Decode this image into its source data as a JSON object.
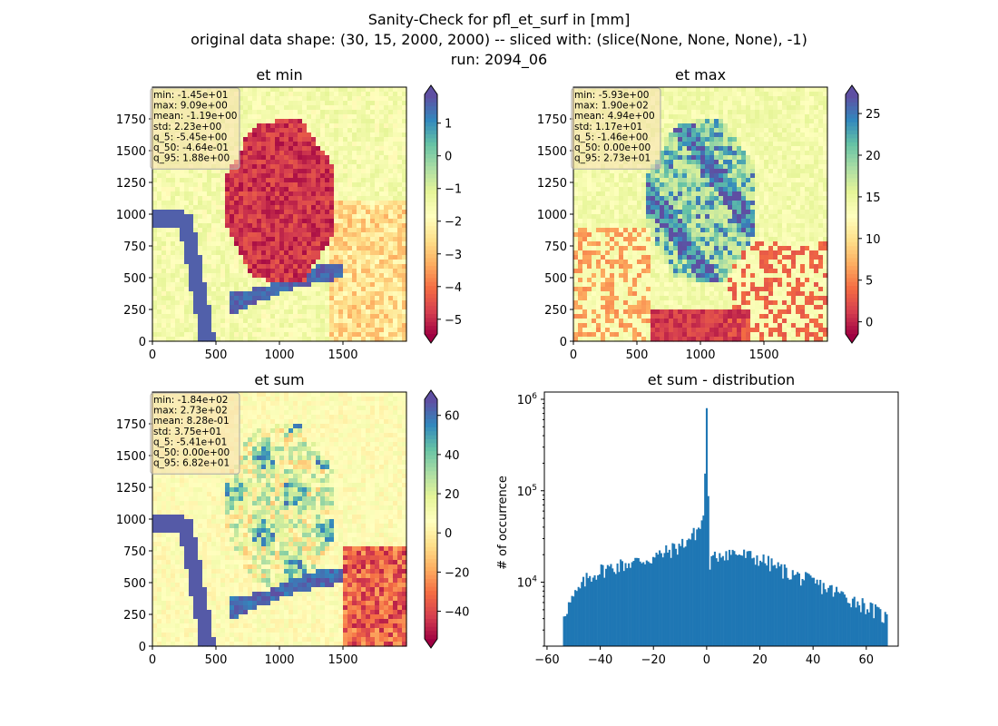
{
  "figure": {
    "title_lines": [
      "Sanity-Check for pfl_et_surf in [mm]",
      "original data shape: (30, 15, 2000, 2000) -- sliced with: (slice(None, None, None), -1)",
      "run: 2094_06"
    ]
  },
  "chart_data": [
    {
      "type": "heatmap",
      "title": "et min",
      "x_ticks": [
        0,
        500,
        1000,
        1500
      ],
      "y_ticks": [
        0,
        250,
        500,
        750,
        1000,
        1250,
        1500,
        1750
      ],
      "xlim": [
        0,
        2000
      ],
      "ylim": [
        0,
        2000
      ],
      "colormap": "Spectral",
      "colorbar_range": [
        -5.45,
        1.88
      ],
      "colorbar_ticks": [
        1,
        0,
        -1,
        -2,
        -3,
        -4,
        -5
      ],
      "colorbar_tick_labels": [
        "1",
        "0",
        "−1",
        "−2",
        "−3",
        "−4",
        "−5"
      ],
      "stats": [
        "min: -1.45e+01",
        "max: 9.09e+00",
        "mean: -1.19e+00",
        "std: 2.23e+00",
        "q_5: -5.45e+00",
        "q_50: -4.64e-01",
        "q_95: 1.88e+00"
      ]
    },
    {
      "type": "heatmap",
      "title": "et max",
      "x_ticks": [
        0,
        500,
        1000,
        1500
      ],
      "y_ticks": [
        0,
        250,
        500,
        750,
        1000,
        1250,
        1500,
        1750
      ],
      "xlim": [
        0,
        2000
      ],
      "ylim": [
        0,
        2000
      ],
      "colormap": "Spectral",
      "colorbar_range": [
        -1.46,
        27.3
      ],
      "colorbar_ticks": [
        25,
        20,
        15,
        10,
        5,
        0
      ],
      "colorbar_tick_labels": [
        "25",
        "20",
        "15",
        "10",
        "5",
        "0"
      ],
      "stats": [
        "min: -5.93e+00",
        "max: 1.90e+02",
        "mean: 4.94e+00",
        "std: 1.17e+01",
        "q_5: -1.46e+00",
        "q_50: 0.00e+00",
        "q_95: 2.73e+01"
      ]
    },
    {
      "type": "heatmap",
      "title": "et sum",
      "x_ticks": [
        0,
        500,
        1000,
        1500
      ],
      "y_ticks": [
        0,
        250,
        500,
        750,
        1000,
        1250,
        1500,
        1750
      ],
      "xlim": [
        0,
        2000
      ],
      "ylim": [
        0,
        2000
      ],
      "colormap": "Spectral",
      "colorbar_range": [
        -54.1,
        68.2
      ],
      "colorbar_ticks": [
        60,
        40,
        20,
        0,
        -20,
        -40
      ],
      "colorbar_tick_labels": [
        "60",
        "40",
        "20",
        "0",
        "−20",
        "−40"
      ],
      "stats": [
        "min: -1.84e+02",
        "max: 2.73e+02",
        "mean: 8.28e-01",
        "std: 3.75e+01",
        "q_5: -5.41e+01",
        "q_50: 0.00e+00",
        "q_95: 6.82e+01"
      ]
    },
    {
      "type": "bar",
      "title": "et sum - distribution",
      "xlabel": "",
      "ylabel": "# of occurrence",
      "yscale": "log",
      "xlim": [
        -61,
        72
      ],
      "ylim": [
        2000,
        1200000
      ],
      "x_ticks": [
        -60,
        -40,
        -20,
        0,
        20,
        40,
        60
      ],
      "x_tick_labels": [
        "−60",
        "−40",
        "−20",
        "0",
        "20",
        "40",
        "60"
      ],
      "y_ticks": [
        10000,
        100000,
        1000000
      ],
      "y_tick_labels": [
        [
          "10",
          "4"
        ],
        [
          "10",
          "5"
        ],
        [
          "10",
          "6"
        ]
      ],
      "bar_color": "#1f77b4",
      "bin_range": [
        -54,
        68
      ],
      "bin_count": 200,
      "histogram_profile": [
        [
          -54,
          4500
        ],
        [
          -50,
          6800
        ],
        [
          -45,
          11000
        ],
        [
          -40,
          13500
        ],
        [
          -30,
          16000
        ],
        [
          -20,
          18500
        ],
        [
          -10,
          25000
        ],
        [
          -5,
          33000
        ],
        [
          -2,
          42000
        ],
        [
          -1,
          60000
        ],
        [
          0,
          800000
        ],
        [
          1,
          16000
        ],
        [
          5,
          21000
        ],
        [
          10,
          21000
        ],
        [
          20,
          18000
        ],
        [
          30,
          13000
        ],
        [
          40,
          10000
        ],
        [
          50,
          7500
        ],
        [
          60,
          5500
        ],
        [
          68,
          4000
        ]
      ]
    }
  ]
}
